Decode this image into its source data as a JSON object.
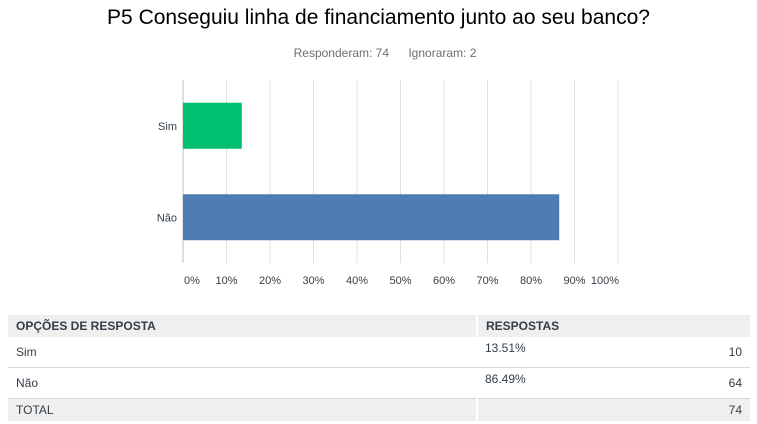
{
  "title": "P5 Conseguiu linha de financiamento junto ao seu banco?",
  "stats": {
    "answered": "Responderam: 74",
    "skipped": "Ignoraram: 2"
  },
  "chart_data": {
    "type": "bar",
    "orientation": "horizontal",
    "categories": [
      "Sim",
      "Não"
    ],
    "values": [
      13.51,
      86.49
    ],
    "colors": [
      "#00bf6f",
      "#507cb6"
    ],
    "xlim": [
      0,
      100
    ],
    "xticks": [
      "0%",
      "10%",
      "20%",
      "30%",
      "40%",
      "50%",
      "60%",
      "70%",
      "80%",
      "90%",
      "100%"
    ],
    "grid": true
  },
  "table": {
    "headers": [
      "OPÇÕES DE RESPOSTA",
      "RESPOSTAS"
    ],
    "rows": [
      {
        "option": "Sim",
        "percent": "13.51%",
        "count": "10"
      },
      {
        "option": "Não",
        "percent": "86.49%",
        "count": "64"
      }
    ],
    "total_label": "TOTAL",
    "total_count": "74"
  }
}
